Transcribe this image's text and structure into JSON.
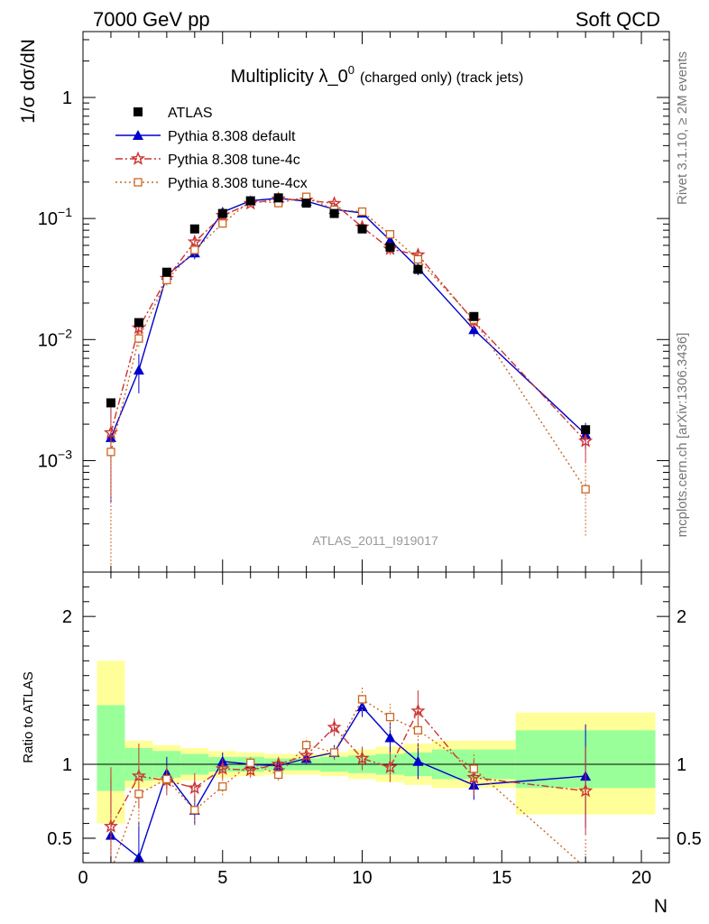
{
  "header": {
    "left": "7000 GeV pp",
    "right": "Soft QCD"
  },
  "side_text": {
    "rivet": "Rivet 3.1.10, ≥ 2M events",
    "mcplots": "mcplots.cern.ch [arXiv:1306.3436]"
  },
  "analysis_label": "ATLAS_2011_I919017",
  "chart_data": [
    {
      "type": "scatter",
      "panel": "main",
      "title": "Multiplicity λ_0",
      "title_sup": "0",
      "title_suffix": "(charged only) (track jets)",
      "ylabel": "1/σ dσ/dN",
      "yscale": "log",
      "ylim": [
        0.00012,
        3.5
      ],
      "xlim": [
        0,
        21
      ],
      "y_ticks": [
        {
          "value": 1,
          "label": "1"
        },
        {
          "value": 0.1,
          "label": "10",
          "sup": "−1"
        },
        {
          "value": 0.01,
          "label": "10",
          "sup": "−2"
        },
        {
          "value": 0.001,
          "label": "10",
          "sup": "−3"
        }
      ],
      "legend": [
        "ATLAS",
        "Pythia 8.308 default",
        "Pythia 8.308 tune-4c",
        "Pythia 8.308 tune-4cx"
      ],
      "legend_position": "top-left",
      "series": [
        {
          "name": "ATLAS",
          "color": "#000000",
          "marker": "square-filled",
          "x": [
            1,
            2,
            3,
            4,
            5,
            6,
            7,
            8,
            9,
            10,
            11,
            12,
            14,
            18
          ],
          "y": [
            0.003,
            0.0138,
            0.036,
            0.082,
            0.11,
            0.14,
            0.148,
            0.134,
            0.11,
            0.082,
            0.058,
            0.038,
            0.0155,
            0.0018
          ],
          "err": [
            0.0001,
            0.0005,
            0.001,
            0.002,
            0.003,
            0.003,
            0.003,
            0.003,
            0.003,
            0.002,
            0.002,
            0.001,
            0.0005,
            0.0001
          ]
        },
        {
          "name": "Pythia 8.308 default",
          "color": "#0000cc",
          "marker": "triangle-filled",
          "line": "solid",
          "x": [
            1,
            2,
            3,
            4,
            5,
            6,
            7,
            8,
            9,
            10,
            11,
            12,
            14,
            18
          ],
          "y": [
            0.00155,
            0.0056,
            0.034,
            0.052,
            0.113,
            0.14,
            0.147,
            0.139,
            0.119,
            0.111,
            0.066,
            0.039,
            0.0121,
            0.00165
          ],
          "err": [
            0.0011,
            0.002,
            0.004,
            0.006,
            0.006,
            0.004,
            0.004,
            0.004,
            0.004,
            0.005,
            0.006,
            0.005,
            0.0015,
            0.0004
          ]
        },
        {
          "name": "Pythia 8.308 tune-4c",
          "color": "#cc3333",
          "marker": "star",
          "line": "dashdot",
          "x": [
            1,
            2,
            3,
            4,
            5,
            6,
            7,
            8,
            9,
            10,
            11,
            12,
            14,
            18
          ],
          "y": [
            0.0017,
            0.0125,
            0.032,
            0.064,
            0.106,
            0.133,
            0.145,
            0.142,
            0.133,
            0.085,
            0.056,
            0.05,
            0.0142,
            0.00145
          ],
          "err": [
            0.0012,
            0.0015,
            0.003,
            0.008,
            0.007,
            0.005,
            0.005,
            0.005,
            0.006,
            0.006,
            0.006,
            0.006,
            0.002,
            0.0005
          ]
        },
        {
          "name": "Pythia 8.308 tune-4cx",
          "color": "#cc6622",
          "marker": "square-open",
          "line": "dotted",
          "x": [
            1,
            2,
            3,
            4,
            5,
            6,
            7,
            8,
            9,
            10,
            11,
            12,
            14,
            18
          ],
          "y": [
            0.00118,
            0.0102,
            0.031,
            0.055,
            0.091,
            0.14,
            0.134,
            0.151,
            0.118,
            0.114,
            0.074,
            0.046,
            0.0146,
            0.00058
          ],
          "err": [
            0.0011,
            0.0015,
            0.003,
            0.006,
            0.006,
            0.005,
            0.005,
            0.005,
            0.005,
            0.005,
            0.005,
            0.005,
            0.0018,
            0.00034
          ]
        }
      ]
    },
    {
      "type": "scatter",
      "panel": "ratio",
      "xlabel": "N",
      "ylabel": "Ratio to ATLAS",
      "xlim": [
        0,
        21
      ],
      "ylim": [
        0.335,
        2.3
      ],
      "x_ticks": [
        0,
        5,
        10,
        15,
        20
      ],
      "y_ticks": [
        0.5,
        1,
        2
      ],
      "bands": [
        {
          "x0": 0.5,
          "x1": 1.5,
          "yellow": [
            0.6,
            1.7
          ],
          "green": [
            0.82,
            1.4
          ]
        },
        {
          "x0": 1.5,
          "x1": 2.5,
          "yellow": [
            0.84,
            1.16
          ],
          "green": [
            0.89,
            1.11
          ]
        },
        {
          "x0": 2.5,
          "x1": 3.5,
          "yellow": [
            0.87,
            1.13
          ],
          "green": [
            0.91,
            1.09
          ]
        },
        {
          "x0": 3.5,
          "x1": 4.5,
          "yellow": [
            0.89,
            1.11
          ],
          "green": [
            0.93,
            1.07
          ]
        },
        {
          "x0": 4.5,
          "x1": 5.5,
          "yellow": [
            0.91,
            1.09
          ],
          "green": [
            0.95,
            1.05
          ]
        },
        {
          "x0": 5.5,
          "x1": 6.5,
          "yellow": [
            0.92,
            1.08
          ],
          "green": [
            0.95,
            1.05
          ]
        },
        {
          "x0": 6.5,
          "x1": 7.5,
          "yellow": [
            0.93,
            1.07
          ],
          "green": [
            0.96,
            1.04
          ]
        },
        {
          "x0": 7.5,
          "x1": 8.5,
          "yellow": [
            0.93,
            1.07
          ],
          "green": [
            0.96,
            1.04
          ]
        },
        {
          "x0": 8.5,
          "x1": 9.5,
          "yellow": [
            0.92,
            1.08
          ],
          "green": [
            0.95,
            1.05
          ]
        },
        {
          "x0": 9.5,
          "x1": 10.5,
          "yellow": [
            0.9,
            1.1
          ],
          "green": [
            0.94,
            1.06
          ]
        },
        {
          "x0": 10.5,
          "x1": 11.5,
          "yellow": [
            0.88,
            1.12
          ],
          "green": [
            0.93,
            1.07
          ]
        },
        {
          "x0": 11.5,
          "x1": 12.5,
          "yellow": [
            0.86,
            1.14
          ],
          "green": [
            0.92,
            1.08
          ]
        },
        {
          "x0": 12.5,
          "x1": 15.5,
          "yellow": [
            0.84,
            1.16
          ],
          "green": [
            0.9,
            1.1
          ]
        },
        {
          "x0": 15.5,
          "x1": 20.5,
          "yellow": [
            0.66,
            1.35
          ],
          "green": [
            0.84,
            1.23
          ]
        }
      ],
      "series": [
        {
          "name": "Pythia 8.308 default",
          "color": "#0000cc",
          "x": [
            1,
            2,
            3,
            4,
            5,
            6,
            7,
            8,
            9,
            10,
            11,
            12,
            14,
            18
          ],
          "y": [
            0.52,
            0.37,
            0.94,
            0.69,
            1.02,
            1.0,
            0.99,
            1.04,
            1.08,
            1.39,
            1.18,
            1.02,
            0.86,
            0.92
          ],
          "err": [
            0.38,
            0.24,
            0.11,
            0.1,
            0.06,
            0.04,
            0.04,
            0.04,
            0.05,
            0.07,
            0.1,
            0.12,
            0.1,
            0.35
          ]
        },
        {
          "name": "Pythia 8.308 tune-4c",
          "color": "#cc3333",
          "x": [
            1,
            2,
            3,
            4,
            5,
            6,
            7,
            8,
            9,
            10,
            11,
            12,
            14,
            18
          ],
          "y": [
            0.58,
            0.92,
            0.89,
            0.84,
            0.97,
            0.96,
            1.0,
            1.06,
            1.25,
            1.04,
            0.98,
            1.36,
            0.91,
            0.82
          ],
          "err": [
            0.4,
            0.22,
            0.1,
            0.1,
            0.07,
            0.05,
            0.05,
            0.05,
            0.06,
            0.08,
            0.1,
            0.14,
            0.12,
            0.3
          ]
        },
        {
          "name": "Pythia 8.308 tune-4cx",
          "color": "#cc6622",
          "x": [
            1,
            2,
            3,
            4,
            5,
            6,
            7,
            8,
            9,
            10,
            11,
            12,
            14,
            18
          ],
          "y": [
            0.28,
            0.8,
            0.9,
            0.69,
            0.85,
            1.01,
            0.93,
            1.13,
            1.08,
            1.44,
            1.32,
            1.23,
            0.97,
            0.3
          ],
          "err": [
            0.38,
            0.22,
            0.09,
            0.1,
            0.06,
            0.04,
            0.04,
            0.05,
            0.05,
            0.08,
            0.09,
            0.12,
            0.11,
            0.2
          ]
        }
      ]
    }
  ]
}
